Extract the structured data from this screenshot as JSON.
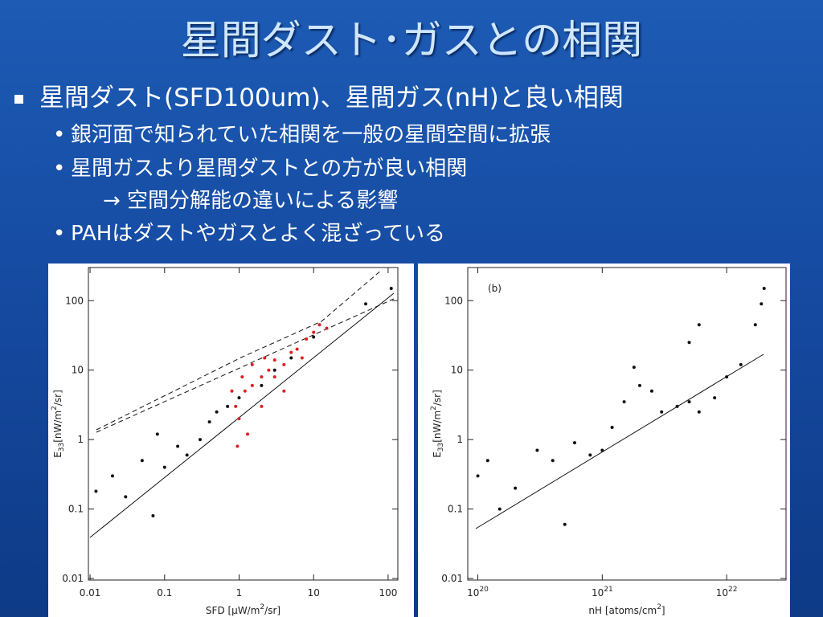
{
  "title": "星間ダスト･ガスとの相関",
  "bullets": [
    {
      "text": "星間ダスト(SFD100um)、星間ガス(nH)と良い相関",
      "sub": [
        "銀河面で知られていた相関を一般の星間空間に拡張",
        "星間ガスより星間ダストとの方が良い相関",
        "→  空間分解能の違いによる影響",
        "PAHはダストやガスとよく混ざっている"
      ]
    }
  ],
  "figures": [
    {
      "type": "scatter",
      "log": true,
      "xlim": [
        0.0095,
        135
      ],
      "ylim": [
        0.0095,
        300
      ],
      "xticks": [
        0.01,
        0.1,
        1,
        10,
        100
      ],
      "yticks": [
        0.01,
        0.1,
        1,
        10,
        100
      ],
      "xlabel": {
        "pre": "SFD [μW/m",
        "sup": "2",
        "post": "/sr]"
      },
      "ylabel": {
        "base": "E",
        "sub": "33",
        "pre": "[nW/m",
        "sup": "2",
        "post": "/sr]"
      },
      "series": [
        {
          "color": "#e02020",
          "points": [
            [
              0.9,
              3
            ],
            [
              1,
              2
            ],
            [
              1.2,
              5
            ],
            [
              1.5,
              6
            ],
            [
              2,
              8
            ],
            [
              2.5,
              10
            ],
            [
              3,
              8
            ],
            [
              3,
              14
            ],
            [
              4,
              12
            ],
            [
              5,
              18
            ],
            [
              6,
              20
            ],
            [
              8,
              28
            ],
            [
              10,
              35
            ],
            [
              1.1,
              8
            ],
            [
              0.95,
              0.8
            ],
            [
              1.3,
              1.2
            ],
            [
              2,
              3
            ],
            [
              4,
              5
            ],
            [
              7,
              15
            ],
            [
              12,
              45
            ],
            [
              15,
              40
            ],
            [
              1.5,
              12
            ],
            [
              0.8,
              5
            ],
            [
              2.2,
              15
            ]
          ]
        },
        {
          "color": "#111111",
          "points": [
            [
              0.012,
              0.18
            ],
            [
              0.02,
              0.3
            ],
            [
              0.03,
              0.15
            ],
            [
              0.05,
              0.5
            ],
            [
              0.07,
              0.08
            ],
            [
              0.08,
              1.2
            ],
            [
              0.1,
              0.4
            ],
            [
              0.15,
              0.8
            ],
            [
              0.2,
              0.6
            ],
            [
              0.3,
              1
            ],
            [
              0.4,
              1.8
            ],
            [
              0.5,
              2.5
            ],
            [
              0.7,
              3
            ],
            [
              1,
              4
            ],
            [
              2,
              6
            ],
            [
              3,
              10
            ],
            [
              5,
              15
            ],
            [
              10,
              30
            ],
            [
              50,
              90
            ],
            [
              110,
              150
            ]
          ]
        }
      ]
    },
    {
      "type": "scatter",
      "log": true,
      "panel_label": "(b)",
      "xlim": [
        8.3e+19,
        3e+22
      ],
      "ylim": [
        0.0095,
        300
      ],
      "xticks": [
        {
          "value": 1e+20,
          "label": "10",
          "exp": "20"
        },
        {
          "value": 1e+21,
          "label": "10",
          "exp": "21"
        },
        {
          "value": 1e+22,
          "label": "10",
          "exp": "22"
        }
      ],
      "yticks": [
        0.01,
        0.1,
        1,
        10,
        100
      ],
      "xlabel": {
        "pre": "nH [atoms/cm",
        "sup": "2",
        "post": "]"
      },
      "ylabel": {
        "base": "E",
        "sub": "33",
        "pre": "[nW/m",
        "sup": "2",
        "post": "/sr]"
      },
      "series": [
        {
          "color": "#111111",
          "points": [
            [
              1e+20,
              0.3
            ],
            [
              1.2e+20,
              0.5
            ],
            [
              1.5e+20,
              0.1
            ],
            [
              2e+20,
              0.2
            ],
            [
              3e+20,
              0.7
            ],
            [
              4e+20,
              0.5
            ],
            [
              5e+20,
              0.06
            ],
            [
              6e+20,
              0.9
            ],
            [
              8e+20,
              0.6
            ],
            [
              1e+21,
              0.7
            ],
            [
              1.2e+21,
              1.5
            ],
            [
              1.5e+21,
              3.5
            ],
            [
              2e+21,
              6
            ],
            [
              2.5e+21,
              5
            ],
            [
              3e+21,
              2.5
            ],
            [
              4e+21,
              3
            ],
            [
              5e+21,
              3.5
            ],
            [
              6e+21,
              2.5
            ],
            [
              8e+21,
              4
            ],
            [
              1e+22,
              8
            ],
            [
              1.3e+22,
              12
            ],
            [
              1.7e+22,
              45
            ],
            [
              1.9e+22,
              90
            ],
            [
              2e+22,
              150
            ],
            [
              5e+21,
              25
            ],
            [
              6e+21,
              45
            ],
            [
              1.8e+21,
              11
            ]
          ]
        }
      ]
    }
  ]
}
